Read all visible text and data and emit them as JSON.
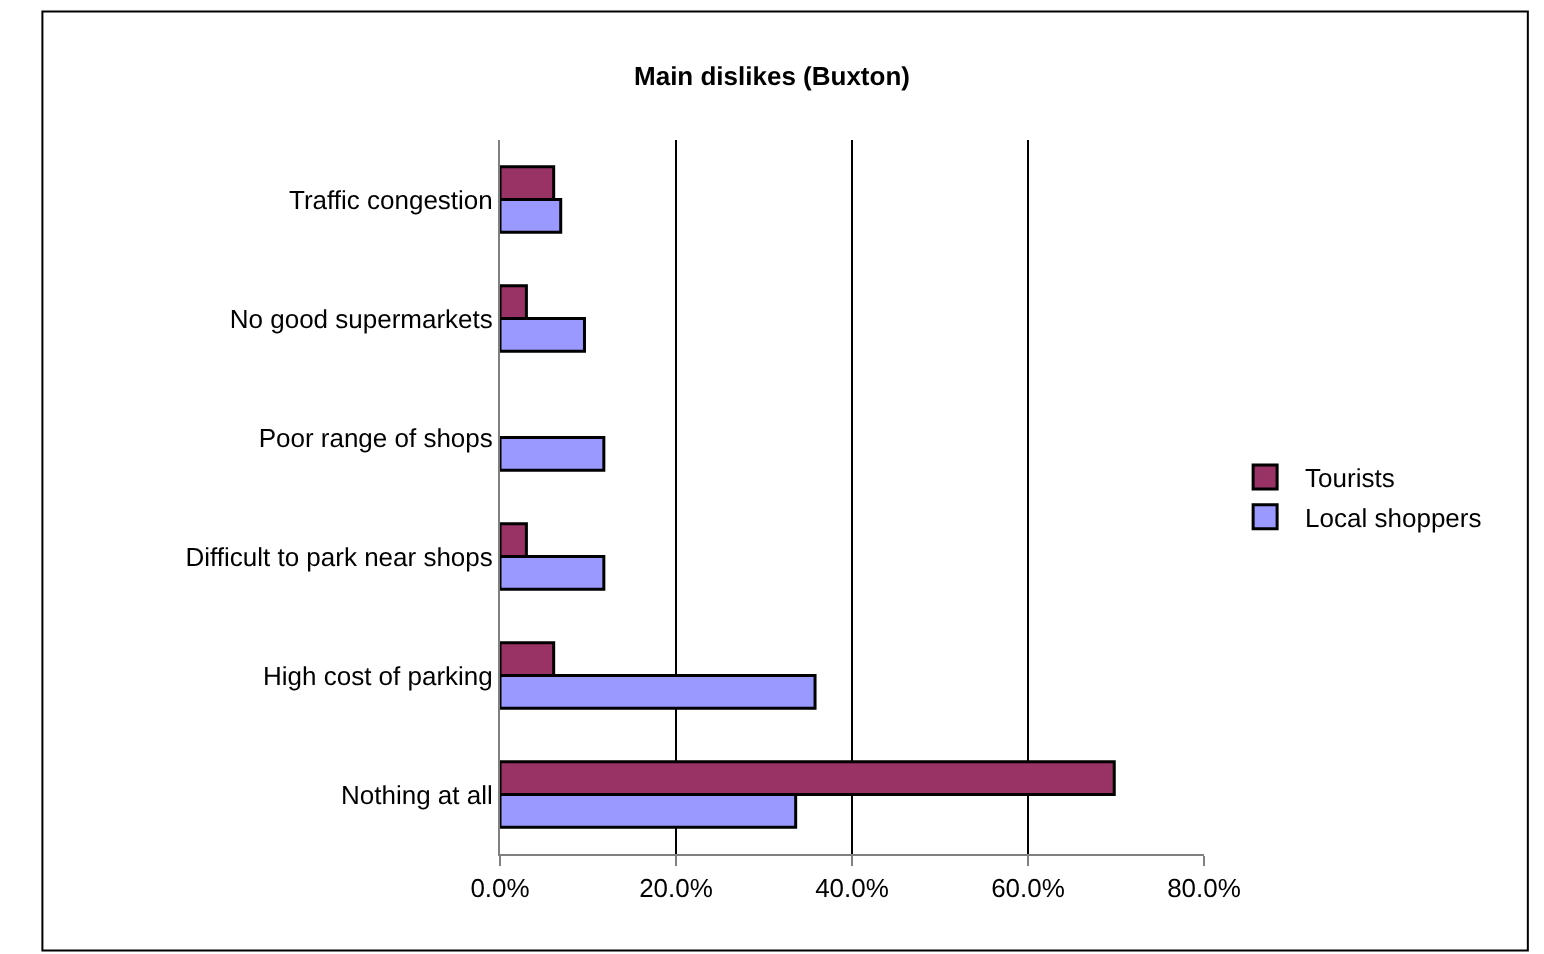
{
  "chart_data": {
    "type": "bar",
    "orientation": "horizontal",
    "title": "Main dislikes (Buxton)",
    "categories": [
      "Traffic congestion",
      "No good supermarkets",
      "Poor range of shops",
      "Difficult to park near shops",
      "High cost of parking",
      "Nothing at all"
    ],
    "series": [
      {
        "name": "Tourists",
        "color": "#993366",
        "values": [
          6.1,
          3.0,
          null,
          3.0,
          6.1,
          69.8
        ]
      },
      {
        "name": "Local shoppers",
        "color": "#9999ff",
        "values": [
          6.9,
          9.6,
          11.8,
          11.8,
          35.8,
          33.6
        ]
      }
    ],
    "xlim": [
      0,
      80
    ],
    "xticks": [
      {
        "value": 0,
        "label": "0.0%"
      },
      {
        "value": 20,
        "label": "20.0%"
      },
      {
        "value": 40,
        "label": "40.0%"
      },
      {
        "value": 60,
        "label": "60.0%"
      },
      {
        "value": 80,
        "label": "80.0%"
      }
    ],
    "grid": "x",
    "legend": "right"
  }
}
